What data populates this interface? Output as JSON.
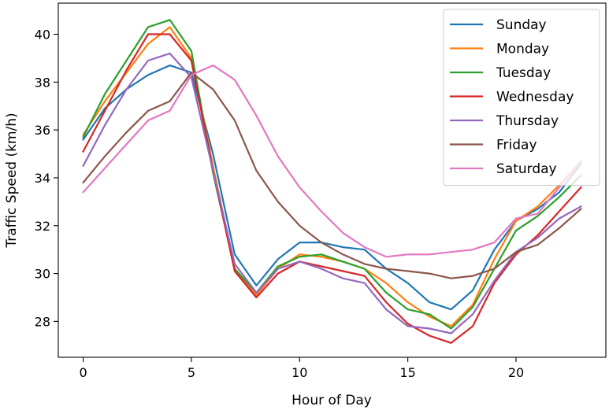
{
  "chart_data": {
    "type": "line",
    "title": "",
    "xlabel": "Hour of Day",
    "ylabel": "Traffic Speed (km/h)",
    "xlim": [
      -1.15,
      24.15
    ],
    "ylim": [
      26.5,
      41.3
    ],
    "xticks": [
      0,
      5,
      10,
      15,
      20
    ],
    "yticks": [
      28,
      30,
      32,
      34,
      36,
      38,
      40
    ],
    "grid": false,
    "legend_position": "top-right",
    "x": [
      0,
      1,
      2,
      3,
      4,
      5,
      6,
      7,
      8,
      9,
      10,
      11,
      12,
      13,
      14,
      15,
      16,
      17,
      18,
      19,
      20,
      21,
      22,
      23
    ],
    "series": [
      {
        "name": "Sunday",
        "color": "#1f77b4",
        "values": [
          35.6,
          36.9,
          37.7,
          38.3,
          38.7,
          38.4,
          35.0,
          30.8,
          29.5,
          30.6,
          31.3,
          31.3,
          31.1,
          31.0,
          30.2,
          29.6,
          28.8,
          28.5,
          29.3,
          31.0,
          32.2,
          32.7,
          33.4,
          34.6
        ]
      },
      {
        "name": "Monday",
        "color": "#ff7f0e",
        "values": [
          35.8,
          37.2,
          38.4,
          39.6,
          40.3,
          39.0,
          34.5,
          30.2,
          29.1,
          30.2,
          30.8,
          30.7,
          30.5,
          30.2,
          29.6,
          28.8,
          28.2,
          27.8,
          28.7,
          30.6,
          32.2,
          32.8,
          33.7,
          34.7
        ]
      },
      {
        "name": "Tuesday",
        "color": "#2ca02c",
        "values": [
          35.7,
          37.5,
          38.9,
          40.3,
          40.6,
          39.3,
          34.2,
          30.2,
          29.2,
          30.3,
          30.7,
          30.8,
          30.5,
          30.2,
          29.2,
          28.5,
          28.3,
          27.7,
          28.6,
          30.2,
          31.8,
          32.4,
          33.2,
          34.1
        ]
      },
      {
        "name": "Wednesday",
        "color": "#d62728",
        "values": [
          35.1,
          36.8,
          38.5,
          40.0,
          40.0,
          38.9,
          34.3,
          30.1,
          29.0,
          30.0,
          30.5,
          30.3,
          30.1,
          29.9,
          28.8,
          27.9,
          27.4,
          27.1,
          27.8,
          29.6,
          30.8,
          31.6,
          32.6,
          33.6
        ]
      },
      {
        "name": "Thursday",
        "color": "#9467bd",
        "values": [
          34.5,
          36.2,
          37.7,
          38.9,
          39.2,
          38.2,
          34.3,
          30.4,
          29.2,
          30.2,
          30.5,
          30.2,
          29.8,
          29.6,
          28.5,
          27.8,
          27.7,
          27.5,
          28.3,
          29.7,
          30.9,
          31.5,
          32.3,
          32.8
        ]
      },
      {
        "name": "Friday",
        "color": "#8c564b",
        "values": [
          33.8,
          34.9,
          35.9,
          36.8,
          37.2,
          38.4,
          37.7,
          36.4,
          34.3,
          33.0,
          32.0,
          31.3,
          30.8,
          30.4,
          30.2,
          30.1,
          30.0,
          29.8,
          29.9,
          30.2,
          30.9,
          31.2,
          31.9,
          32.7
        ]
      },
      {
        "name": "Saturday",
        "color": "#e377c2",
        "values": [
          33.4,
          34.4,
          35.4,
          36.4,
          36.8,
          38.3,
          38.7,
          38.1,
          36.6,
          34.9,
          33.6,
          32.6,
          31.7,
          31.1,
          30.7,
          30.8,
          30.8,
          30.9,
          31.0,
          31.3,
          32.3,
          32.5,
          33.6,
          34.7
        ]
      }
    ]
  }
}
